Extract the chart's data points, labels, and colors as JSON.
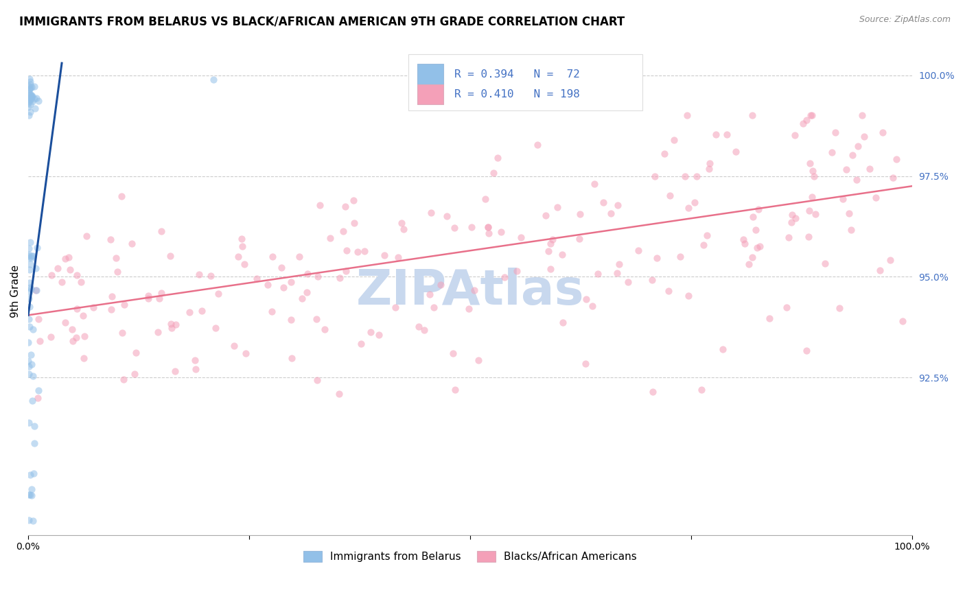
{
  "title": "IMMIGRANTS FROM BELARUS VS BLACK/AFRICAN AMERICAN 9TH GRADE CORRELATION CHART",
  "source": "Source: ZipAtlas.com",
  "ylabel": "9th Grade",
  "right_yticks": [
    "92.5%",
    "95.0%",
    "97.5%",
    "100.0%"
  ],
  "right_ytick_vals": [
    0.925,
    0.95,
    0.975,
    1.0
  ],
  "legend_line1": "R = 0.394   N =  72",
  "legend_line2": "R = 0.410   N = 198",
  "blue_color": "#92C0E8",
  "pink_color": "#F4A0B8",
  "blue_line_color": "#1B4F9C",
  "pink_line_color": "#E8708A",
  "blue_trend_x": [
    0.0,
    0.038
  ],
  "blue_trend_y": [
    0.9405,
    1.003
  ],
  "pink_trend_x": [
    0.0,
    1.0
  ],
  "pink_trend_y": [
    0.9405,
    0.9725
  ],
  "xlim": [
    0.0,
    1.0
  ],
  "ylim": [
    0.886,
    1.007
  ],
  "grid_color": "#CCCCCC",
  "background_color": "#FFFFFF",
  "title_fontsize": 12,
  "label_fontsize": 11,
  "tick_fontsize": 10,
  "watermark_text": "ZIPAtlas",
  "watermark_color": "#C8D8EE",
  "watermark_fontsize": 52,
  "marker_size": 55,
  "marker_alpha": 0.55
}
